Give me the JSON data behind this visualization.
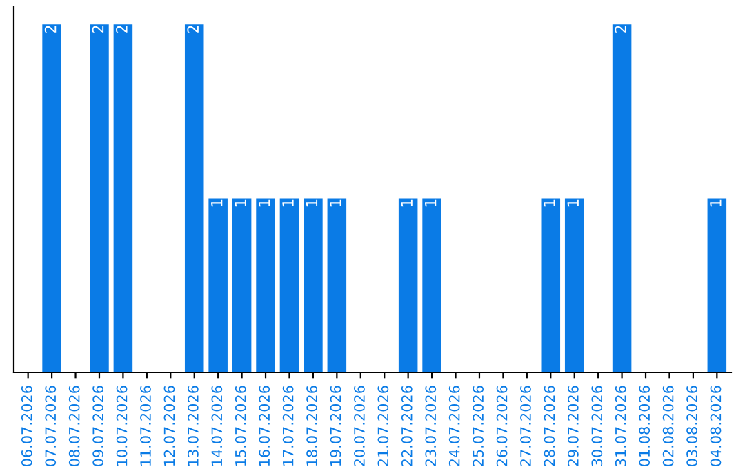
{
  "chart_data": {
    "type": "bar",
    "categories": [
      "06.07.2026",
      "07.07.2026",
      "08.07.2026",
      "09.07.2026",
      "10.07.2026",
      "11.07.2026",
      "12.07.2026",
      "13.07.2026",
      "14.07.2026",
      "15.07.2026",
      "16.07.2026",
      "17.07.2026",
      "18.07.2026",
      "19.07.2026",
      "20.07.2026",
      "21.07.2026",
      "22.07.2026",
      "23.07.2026",
      "24.07.2026",
      "25.07.2026",
      "26.07.2026",
      "27.07.2026",
      "28.07.2026",
      "29.07.2026",
      "30.07.2026",
      "31.07.2026",
      "01.08.2026",
      "02.08.2026",
      "03.08.2026",
      "04.08.2026"
    ],
    "values": [
      0,
      2,
      0,
      2,
      2,
      0,
      0,
      2,
      1,
      1,
      1,
      1,
      1,
      1,
      0,
      0,
      1,
      1,
      0,
      0,
      0,
      0,
      1,
      1,
      0,
      2,
      0,
      0,
      0,
      1
    ],
    "value_labels": [
      null,
      "2",
      null,
      "2",
      "2",
      null,
      null,
      "2",
      "1",
      "1",
      "1",
      "1",
      "1",
      "1",
      null,
      null,
      "1",
      "1",
      null,
      null,
      null,
      null,
      "1",
      "1",
      null,
      "2",
      null,
      null,
      null,
      "1"
    ],
    "color": "#0a7be6",
    "ylim": [
      0,
      2.1
    ],
    "tick_labels": "x",
    "grid": false,
    "legend": false
  }
}
